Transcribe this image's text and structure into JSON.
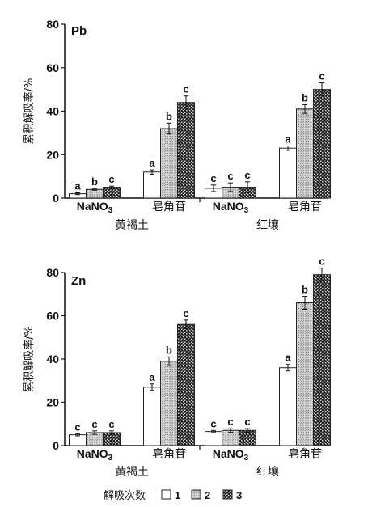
{
  "chart_data": [
    {
      "type": "bar",
      "title": "Pb",
      "ylabel": "累积解吸率/%",
      "ylim": [
        0,
        80
      ],
      "yticks": [
        0,
        20,
        40,
        60,
        80
      ],
      "groups": [
        {
          "name": "黄褐土",
          "categories": [
            {
              "label": "NaNO",
              "sub": "3"
            },
            {
              "label": "皂角苷"
            }
          ]
        },
        {
          "name": "红壤",
          "categories": [
            {
              "label": "NaNO",
              "sub": "3"
            },
            {
              "label": "皂角苷"
            }
          ]
        }
      ],
      "series": [
        {
          "name": "1",
          "values": [
            2,
            12,
            4.5,
            23
          ],
          "errors": [
            0.4,
            1,
            1.5,
            1
          ],
          "sig": [
            "a",
            "a",
            "c",
            "a"
          ]
        },
        {
          "name": "2",
          "values": [
            4,
            32,
            5,
            41
          ],
          "errors": [
            0.4,
            2.5,
            2,
            2
          ],
          "sig": [
            "b",
            "b",
            "c",
            "b"
          ]
        },
        {
          "name": "3",
          "values": [
            5,
            44,
            5,
            50
          ],
          "errors": [
            0.5,
            3,
            2.5,
            3
          ],
          "sig": [
            "c",
            "c",
            "c",
            "c"
          ]
        }
      ]
    },
    {
      "type": "bar",
      "title": "Zn",
      "ylabel": "累积解吸率/%",
      "ylim": [
        0,
        80
      ],
      "yticks": [
        0,
        20,
        40,
        60,
        80
      ],
      "groups": [
        {
          "name": "黄褐土",
          "categories": [
            {
              "label": "NaNO",
              "sub": "3"
            },
            {
              "label": "皂角苷"
            }
          ]
        },
        {
          "name": "红壤",
          "categories": [
            {
              "label": "NaNO",
              "sub": "3"
            },
            {
              "label": "皂角苷"
            }
          ]
        }
      ],
      "series": [
        {
          "name": "1",
          "values": [
            5,
            27,
            6.5,
            36
          ],
          "errors": [
            0.5,
            1.5,
            0.5,
            1.5
          ],
          "sig": [
            "c",
            "a",
            "c",
            "a"
          ]
        },
        {
          "name": "2",
          "values": [
            6,
            39,
            7,
            66
          ],
          "errors": [
            0.8,
            2,
            0.8,
            3
          ],
          "sig": [
            "c",
            "b",
            "c",
            "b"
          ]
        },
        {
          "name": "3",
          "values": [
            6,
            56,
            7,
            79
          ],
          "errors": [
            0.8,
            2,
            0.8,
            3
          ],
          "sig": [
            "c",
            "c",
            "c",
            "c"
          ]
        }
      ]
    }
  ],
  "legend": {
    "title": "解吸次数",
    "items": [
      "1",
      "2",
      "3"
    ]
  }
}
